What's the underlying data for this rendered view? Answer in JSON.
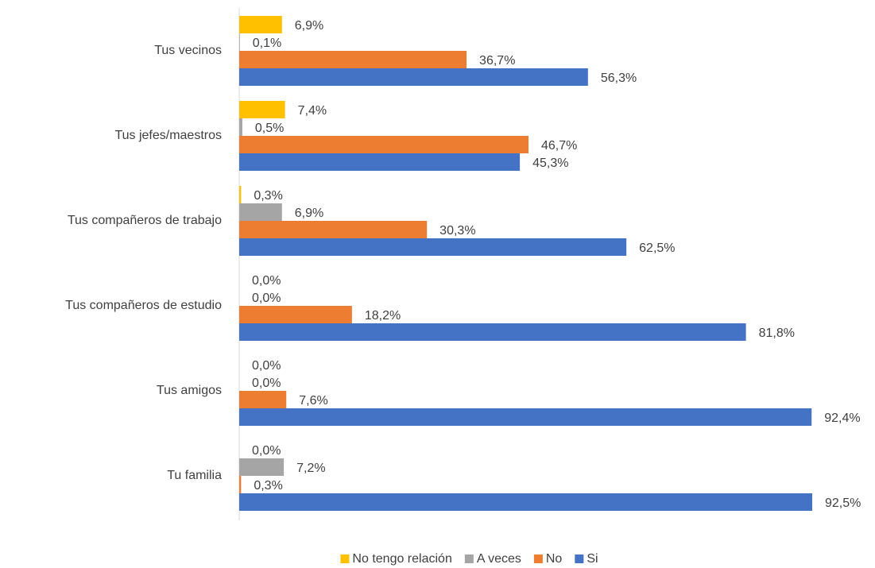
{
  "chart_data": {
    "type": "bar",
    "categories": [
      "Tus vecinos",
      "Tus jefes/maestros",
      "Tus compañeros de trabajo",
      "Tus compañeros de estudio",
      "Tus amigos",
      "Tu familia"
    ],
    "series": [
      {
        "name": "No tengo relación",
        "color": "#FFC000",
        "values": [
          6.9,
          7.4,
          0.3,
          0.0,
          0.0,
          0.0
        ],
        "value_labels": [
          "6,9%",
          "7,4%",
          "0,3%",
          "0,0%",
          "0,0%",
          "0,0%"
        ]
      },
      {
        "name": "A veces",
        "color": "#A5A5A5",
        "values": [
          0.1,
          0.5,
          6.9,
          0.0,
          0.0,
          7.2
        ],
        "value_labels": [
          "0,1%",
          "0,5%",
          "6,9%",
          "0,0%",
          "0,0%",
          "7,2%"
        ]
      },
      {
        "name": "No",
        "color": "#ED7D31",
        "values": [
          36.7,
          46.7,
          30.3,
          18.2,
          7.6,
          0.3
        ],
        "value_labels": [
          "36,7%",
          "46,7%",
          "30,3%",
          "18,2%",
          "7,6%",
          "0,3%"
        ]
      },
      {
        "name": "Si",
        "color": "#4472C4",
        "values": [
          56.3,
          45.3,
          62.5,
          81.8,
          92.4,
          92.5
        ],
        "value_labels": [
          "56,3%",
          "45,3%",
          "62,5%",
          "81,8%",
          "92,4%",
          "92,5%"
        ]
      }
    ],
    "legend": "bottom"
  }
}
